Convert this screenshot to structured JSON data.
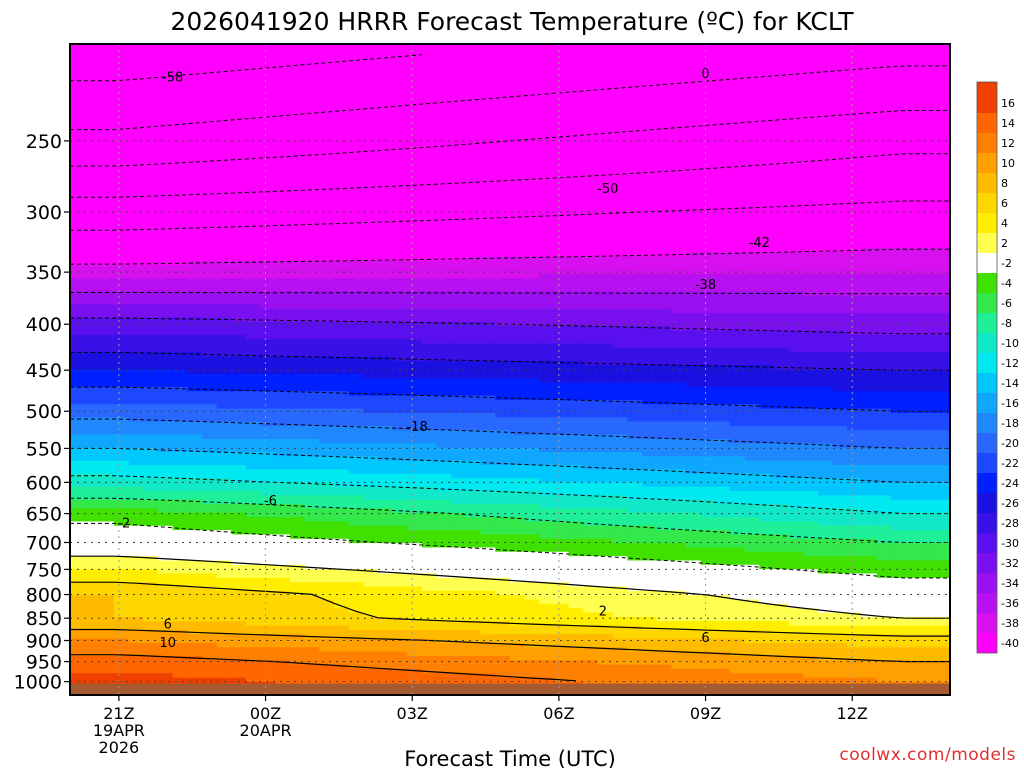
{
  "title": "2026041920 HRRR Forecast Temperature (ºC) for KCLT",
  "watermark": "coolwx.com/models",
  "chart_data": {
    "type": "heatmap",
    "title": "2026041920 HRRR Forecast Temperature (ºC) for KCLT",
    "xlabel": "Forecast Time (UTC)",
    "ylabel": "",
    "x_range_hours": [
      -1,
      17
    ],
    "y_range_hpa": [
      195,
      1035
    ],
    "y_scale": "log",
    "grid": true,
    "x_ticks": [
      {
        "hour": 0,
        "lines": [
          "21Z",
          "19APR",
          "2026"
        ]
      },
      {
        "hour": 3,
        "lines": [
          "00Z",
          "20APR"
        ]
      },
      {
        "hour": 6,
        "lines": [
          "03Z"
        ]
      },
      {
        "hour": 9,
        "lines": [
          "06Z"
        ]
      },
      {
        "hour": 12,
        "lines": [
          "09Z"
        ]
      },
      {
        "hour": 15,
        "lines": [
          "12Z"
        ]
      }
    ],
    "y_ticks": [
      250,
      300,
      350,
      400,
      450,
      500,
      550,
      600,
      650,
      700,
      750,
      800,
      850,
      900,
      950,
      1000
    ],
    "colorbar": {
      "labels": [
        "16",
        "14",
        "12",
        "10",
        "8",
        "6",
        "4",
        "2",
        "-2",
        "-4",
        "-6",
        "-8",
        "-10",
        "-12",
        "-14",
        "-16",
        "-18",
        "-20",
        "-22",
        "-24",
        "-26",
        "-28",
        "-30",
        "-32",
        "-34",
        "-36",
        "-38",
        "-40"
      ],
      "colors": [
        "#f04000",
        "#ff6600",
        "#ff8000",
        "#ffa000",
        "#ffbb00",
        "#ffd700",
        "#ffee00",
        "#ffff50",
        "#ffffff",
        "#40e000",
        "#33e84a",
        "#1ef09a",
        "#10e8c8",
        "#00e8f0",
        "#00c8ff",
        "#10a8ff",
        "#2088ff",
        "#2868ff",
        "#1e48ff",
        "#0020ff",
        "#1a10e0",
        "#3a10e8",
        "#5a10ee",
        "#7a10f0",
        "#9a10f0",
        "#b810f0",
        "#d810f0",
        "#ff00ff"
      ]
    },
    "temperature_profile": {
      "pressure_levels": [
        200,
        250,
        300,
        350,
        400,
        450,
        500,
        550,
        600,
        650,
        700,
        750,
        800,
        850,
        900,
        950,
        1000
      ],
      "hour_0": [
        -60,
        -53,
        -44,
        -37,
        -29,
        -24,
        -19,
        -14,
        -9,
        -3,
        0,
        4,
        8,
        8,
        12,
        15,
        17
      ],
      "hour_16": [
        -55,
        -47,
        -41,
        -36,
        -31,
        -26,
        -22,
        -18,
        -14,
        -10,
        -6,
        -3,
        0,
        2,
        7,
        10,
        12
      ]
    },
    "contour_labels": [
      {
        "text": "-58",
        "hour": 1.1,
        "p": 212
      },
      {
        "text": "-50",
        "hour": 10.0,
        "p": 282
      },
      {
        "text": "-42",
        "hour": 13.1,
        "p": 324
      },
      {
        "text": "-38",
        "hour": 12.0,
        "p": 361
      },
      {
        "text": "-18",
        "hour": 6.1,
        "p": 519
      },
      {
        "text": "-6",
        "hour": 3.1,
        "p": 628
      },
      {
        "text": "-2",
        "hour": 0.1,
        "p": 665
      },
      {
        "text": "6",
        "hour": 1.0,
        "p": 862
      },
      {
        "text": "10",
        "hour": 1.0,
        "p": 903
      },
      {
        "text": "2",
        "hour": 9.9,
        "p": 833
      },
      {
        "text": "6",
        "hour": 12.0,
        "p": 892
      },
      {
        "text": "0",
        "hour": 12.0,
        "p": 210
      }
    ]
  }
}
